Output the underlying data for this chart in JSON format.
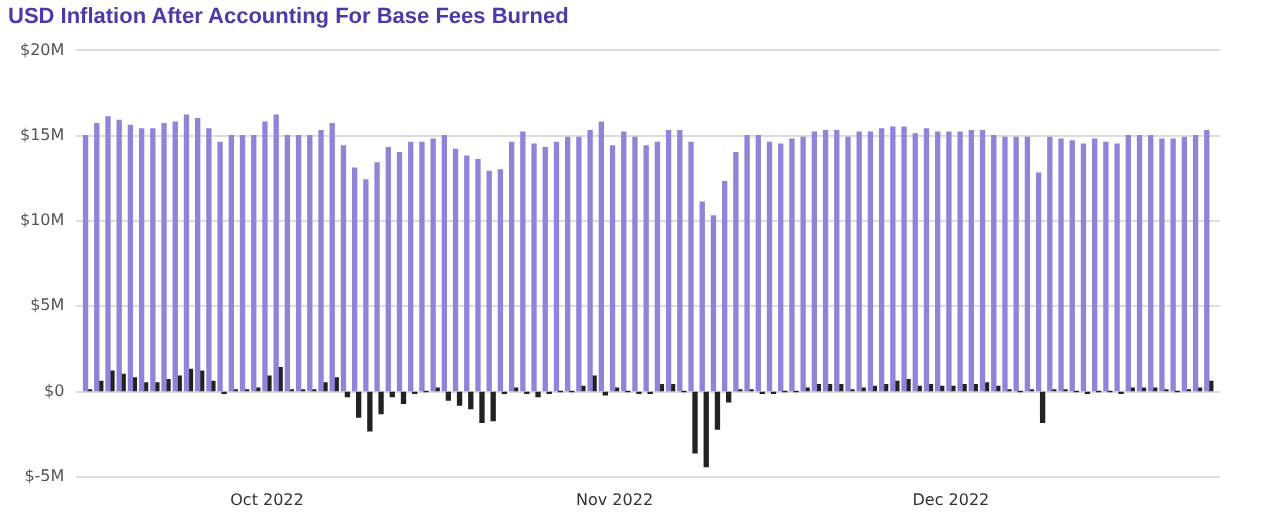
{
  "chart_data": {
    "type": "bar",
    "title": "USD Inflation After Accounting For Base Fees Burned",
    "x": [
      "2022-09-15",
      "2022-09-16",
      "2022-09-17",
      "2022-09-18",
      "2022-09-19",
      "2022-09-20",
      "2022-09-21",
      "2022-09-22",
      "2022-09-23",
      "2022-09-24",
      "2022-09-25",
      "2022-09-26",
      "2022-09-27",
      "2022-09-28",
      "2022-09-29",
      "2022-09-30",
      "2022-10-01",
      "2022-10-02",
      "2022-10-03",
      "2022-10-04",
      "2022-10-05",
      "2022-10-06",
      "2022-10-07",
      "2022-10-08",
      "2022-10-09",
      "2022-10-10",
      "2022-10-11",
      "2022-10-12",
      "2022-10-13",
      "2022-10-14",
      "2022-10-15",
      "2022-10-16",
      "2022-10-17",
      "2022-10-18",
      "2022-10-19",
      "2022-10-20",
      "2022-10-21",
      "2022-10-22",
      "2022-10-23",
      "2022-10-24",
      "2022-10-25",
      "2022-10-26",
      "2022-10-27",
      "2022-10-28",
      "2022-10-29",
      "2022-10-30",
      "2022-10-31",
      "2022-11-01",
      "2022-11-02",
      "2022-11-03",
      "2022-11-04",
      "2022-11-05",
      "2022-11-06",
      "2022-11-07",
      "2022-11-08",
      "2022-11-09",
      "2022-11-10",
      "2022-11-11",
      "2022-11-12",
      "2022-11-13",
      "2022-11-14",
      "2022-11-15",
      "2022-11-16",
      "2022-11-17",
      "2022-11-18",
      "2022-11-19",
      "2022-11-20",
      "2022-11-21",
      "2022-11-22",
      "2022-11-23",
      "2022-11-24",
      "2022-11-25",
      "2022-11-26",
      "2022-11-27",
      "2022-11-28",
      "2022-11-29",
      "2022-11-30",
      "2022-12-01",
      "2022-12-02",
      "2022-12-03",
      "2022-12-04",
      "2022-12-05",
      "2022-12-06",
      "2022-12-07",
      "2022-12-08",
      "2022-12-09",
      "2022-12-10",
      "2022-12-11",
      "2022-12-12",
      "2022-12-13",
      "2022-12-14",
      "2022-12-15",
      "2022-12-16",
      "2022-12-17",
      "2022-12-18",
      "2022-12-19",
      "2022-12-20",
      "2022-12-21",
      "2022-12-22",
      "2022-12-23",
      "2022-12-24"
    ],
    "series": [
      {
        "color": "#8e84d8",
        "values": [
          15.0,
          15.7,
          16.1,
          15.9,
          15.6,
          15.4,
          15.4,
          15.7,
          15.8,
          16.2,
          16.0,
          15.4,
          14.6,
          15.0,
          15.0,
          15.0,
          15.8,
          16.2,
          15.0,
          15.0,
          15.0,
          15.3,
          15.7,
          14.4,
          13.1,
          12.4,
          13.4,
          14.3,
          14.0,
          14.6,
          14.6,
          14.8,
          15.0,
          14.2,
          13.8,
          13.6,
          12.9,
          13.0,
          14.6,
          15.2,
          14.5,
          14.3,
          14.6,
          14.9,
          14.9,
          15.3,
          15.8,
          14.4,
          15.2,
          14.9,
          14.4,
          14.6,
          15.3,
          15.3,
          14.6,
          11.1,
          10.3,
          12.3,
          14.0,
          15.0,
          15.0,
          14.6,
          14.5,
          14.8,
          14.9,
          15.2,
          15.3,
          15.3,
          14.9,
          15.2,
          15.2,
          15.4,
          15.5,
          15.5,
          15.1,
          15.4,
          15.2,
          15.2,
          15.2,
          15.3,
          15.3,
          15.0,
          14.9,
          14.9,
          14.9,
          12.8,
          14.9,
          14.8,
          14.7,
          14.5,
          14.8,
          14.6,
          14.5,
          15.0,
          15.0,
          15.0,
          14.8,
          14.8,
          14.9,
          15.0,
          15.3
        ]
      },
      {
        "color": "#222222",
        "values": [
          0.1,
          0.6,
          1.2,
          1.0,
          0.8,
          0.5,
          0.5,
          0.7,
          0.9,
          1.3,
          1.2,
          0.6,
          -0.1,
          0.1,
          0.1,
          0.2,
          0.9,
          1.4,
          0.1,
          0.1,
          0.1,
          0.5,
          0.8,
          -0.3,
          -1.5,
          -2.3,
          -1.3,
          -0.3,
          -0.7,
          -0.1,
          0,
          0.2,
          -0.5,
          -0.8,
          -1.0,
          -1.8,
          -1.7,
          -0.1,
          0.2,
          -0.1,
          -0.3,
          -0.1,
          0,
          0,
          0.3,
          0.9,
          -0.2,
          0.2,
          0,
          -0.1,
          -0.1,
          0.4,
          0.4,
          0,
          -3.6,
          -4.4,
          -2.2,
          -0.6,
          0.1,
          0.1,
          -0.1,
          -0.1,
          0,
          0,
          0.2,
          0.4,
          0.4,
          0.4,
          0.1,
          0.2,
          0.3,
          0.4,
          0.6,
          0.7,
          0.3,
          0.4,
          0.3,
          0.3,
          0.4,
          0.4,
          0.5,
          0.3,
          0.1,
          0,
          0.1,
          -1.8,
          0.1,
          0.1,
          0,
          -0.1,
          0,
          0,
          -0.1,
          0.2,
          0.2,
          0.2,
          0.1,
          0,
          0.1,
          0.2,
          0.6
        ]
      }
    ],
    "xlim": [
      "2022-09-14",
      "2022-12-25"
    ],
    "xticks": [
      {
        "value": "2022-10-01",
        "label": "Oct 2022"
      },
      {
        "value": "2022-11-01",
        "label": "Nov 2022"
      },
      {
        "value": "2022-12-01",
        "label": "Dec 2022"
      }
    ],
    "ylim": [
      -5,
      20
    ],
    "yticks": [
      {
        "value": -5,
        "label": "$-5M"
      },
      {
        "value": 0,
        "label": "$0"
      },
      {
        "value": 5,
        "label": "$5M"
      },
      {
        "value": 10,
        "label": "$10M"
      },
      {
        "value": 15,
        "label": "$15M"
      },
      {
        "value": 20,
        "label": "$20M"
      }
    ],
    "grid": "y",
    "legend": false
  }
}
